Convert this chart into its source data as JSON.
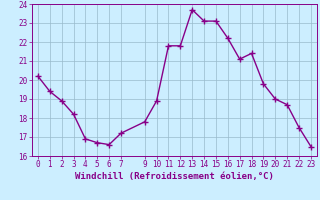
{
  "x": [
    0,
    1,
    2,
    3,
    4,
    5,
    6,
    7,
    9,
    10,
    11,
    12,
    13,
    14,
    15,
    16,
    17,
    18,
    19,
    20,
    21,
    22,
    23
  ],
  "y": [
    20.2,
    19.4,
    18.9,
    18.2,
    16.9,
    16.7,
    16.6,
    17.2,
    17.8,
    18.9,
    21.8,
    21.8,
    23.7,
    23.1,
    23.1,
    22.2,
    21.1,
    21.4,
    19.8,
    19.0,
    18.7,
    17.5,
    16.5
  ],
  "line_color": "#880088",
  "marker_color": "#880088",
  "bg_color": "#cceeff",
  "grid_color": "#99bbcc",
  "xlabel": "Windchill (Refroidissement éolien,°C)",
  "xlabel_color": "#880088",
  "xlim": [
    -0.5,
    23.5
  ],
  "ylim": [
    16,
    24
  ],
  "yticks": [
    16,
    17,
    18,
    19,
    20,
    21,
    22,
    23,
    24
  ],
  "xticks": [
    0,
    1,
    2,
    3,
    4,
    5,
    6,
    7,
    9,
    10,
    11,
    12,
    13,
    14,
    15,
    16,
    17,
    18,
    19,
    20,
    21,
    22,
    23
  ],
  "tick_color": "#880088",
  "spine_color": "#880088",
  "line_width": 1.0,
  "marker_size": 4,
  "tick_fontsize": 5.5,
  "xlabel_fontsize": 6.5
}
